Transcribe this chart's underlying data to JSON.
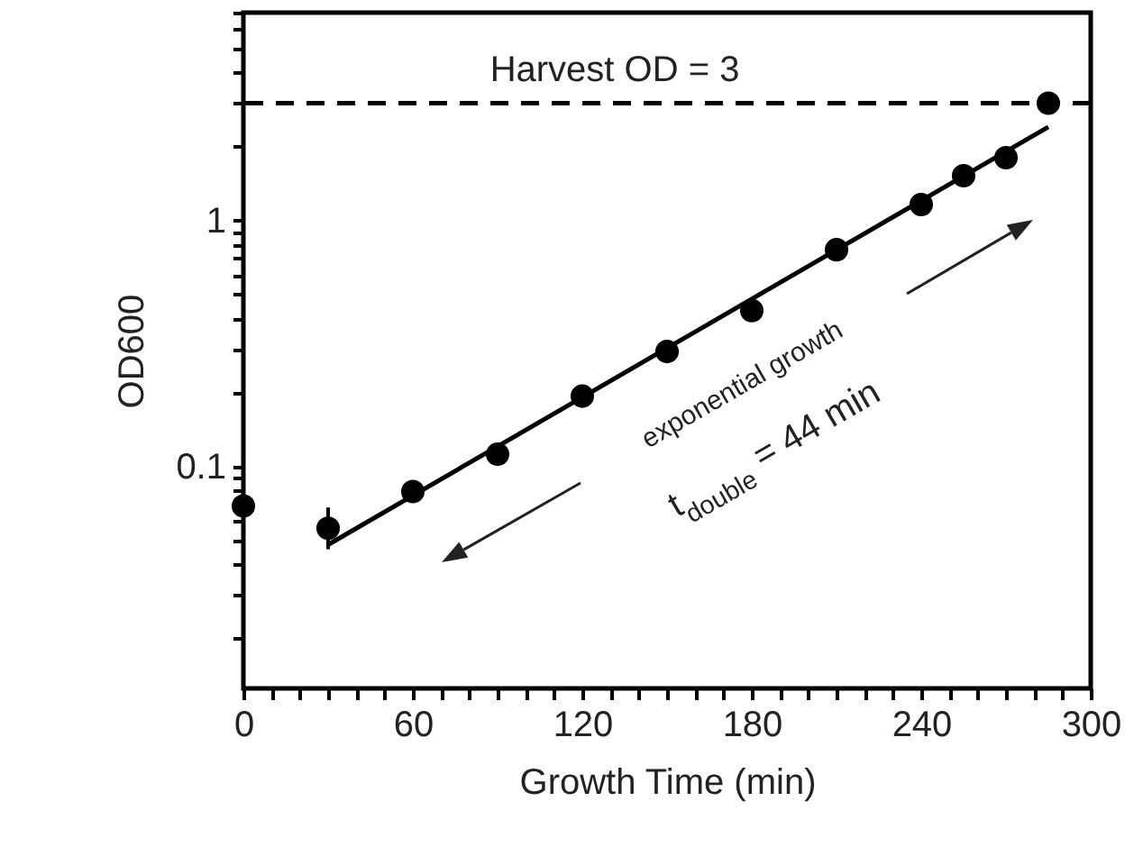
{
  "chart_data": {
    "type": "scatter",
    "xlabel": "Growth Time (min)",
    "ylabel": "OD600",
    "log": "y",
    "xlim": [
      0,
      300
    ],
    "ylim": [
      0.0125,
      7
    ],
    "xticks": [
      0,
      {
        "value": 10,
        "label": null
      },
      {
        "value": 20,
        "label": null
      },
      {
        "value": 30,
        "label": null
      },
      {
        "value": 40,
        "label": null
      },
      {
        "value": 50,
        "label": null
      },
      60,
      {
        "value": 70,
        "label": null
      },
      {
        "value": 80,
        "label": null
      },
      {
        "value": 90,
        "label": null
      },
      {
        "value": 100,
        "label": null
      },
      {
        "value": 110,
        "label": null
      },
      120,
      {
        "value": 130,
        "label": null
      },
      {
        "value": 140,
        "label": null
      },
      {
        "value": 150,
        "label": null
      },
      {
        "value": 160,
        "label": null
      },
      {
        "value": 170,
        "label": null
      },
      180,
      {
        "value": 190,
        "label": null
      },
      {
        "value": 200,
        "label": null
      },
      {
        "value": 210,
        "label": null
      },
      {
        "value": 220,
        "label": null
      },
      {
        "value": 230,
        "label": null
      },
      240,
      {
        "value": 250,
        "label": null
      },
      {
        "value": 260,
        "label": null
      },
      {
        "value": 270,
        "label": null
      },
      {
        "value": 280,
        "label": null
      },
      {
        "value": 290,
        "label": null
      },
      300
    ],
    "yticks": [
      {
        "value": 0.02,
        "label": null
      },
      {
        "value": 0.03,
        "label": null
      },
      {
        "value": 0.04,
        "label": null
      },
      {
        "value": 0.05,
        "label": null
      },
      {
        "value": 0.06,
        "label": null
      },
      {
        "value": 0.07,
        "label": null
      },
      {
        "value": 0.08,
        "label": null
      },
      {
        "value": 0.09,
        "label": null
      },
      0.1,
      {
        "value": 0.2,
        "label": null
      },
      {
        "value": 0.3,
        "label": null
      },
      {
        "value": 0.4,
        "label": null
      },
      {
        "value": 0.5,
        "label": null
      },
      {
        "value": 0.6,
        "label": null
      },
      {
        "value": 0.7,
        "label": null
      },
      {
        "value": 0.8,
        "label": null
      },
      {
        "value": 0.9,
        "label": null
      },
      1,
      {
        "value": 2,
        "label": null
      },
      {
        "value": 3,
        "label": null
      },
      {
        "value": 4,
        "label": null
      },
      {
        "value": 5,
        "label": null
      },
      {
        "value": 6,
        "label": null
      },
      {
        "value": 7,
        "label": null
      }
    ],
    "annotations": [
      "exponential growth",
      "t$_{double}$ = 44 min"
    ],
    "ref_lines": [
      {
        "axis": "y",
        "value": 3,
        "label": "Harvest OD = 3",
        "line_style": "dashed",
        "color": "#000000"
      }
    ],
    "series": [
      {
        "color": "#000000",
        "marker": "circle",
        "x": [
          0,
          30,
          60,
          90,
          120,
          150,
          180,
          210,
          240,
          255,
          270,
          285
        ],
        "values": [
          0.069,
          0.056,
          0.079,
          0.112,
          0.193,
          0.293,
          0.43,
          0.76,
          1.16,
          1.52,
          1.8,
          3.0
        ],
        "errors": [
          [
            0.026,
            0.11
          ],
          [
            0.046,
            0.068
          ],
          null,
          null,
          null,
          null,
          null,
          null,
          null,
          null,
          null,
          null
        ]
      },
      {
        "type": "line",
        "color": "#000000",
        "marker": "none",
        "line_style": "solid",
        "x": [
          30,
          285
        ],
        "values": [
          0.048,
          2.4
        ]
      }
    ]
  }
}
